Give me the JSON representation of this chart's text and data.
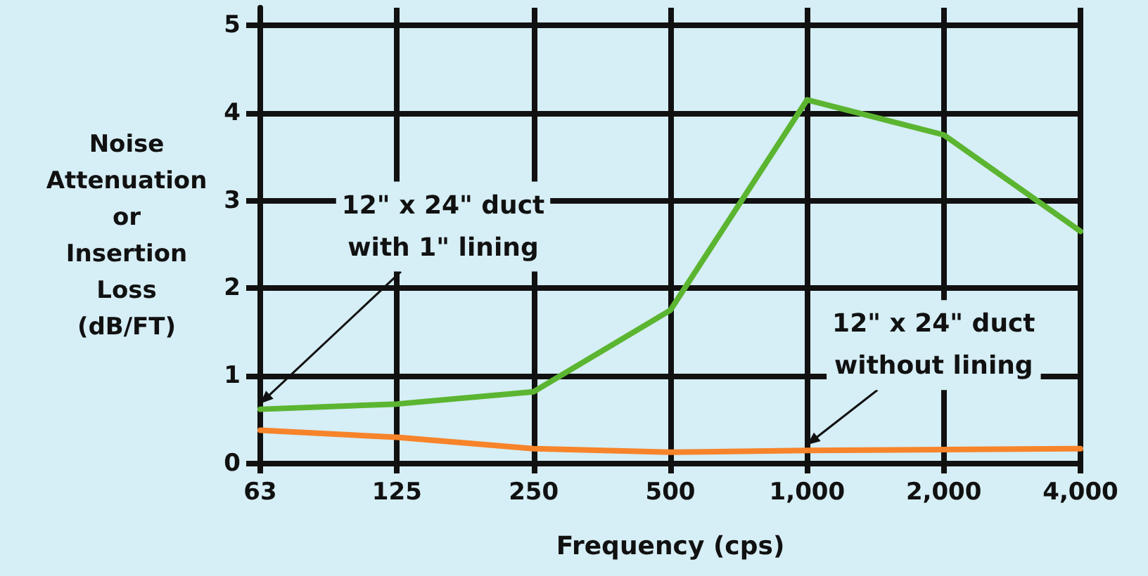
{
  "chart_data": {
    "type": "line",
    "xlabel": "Frequency (cps)",
    "ylabel": "Noise Attenuation or Insertion Loss (dB/FT)",
    "categories": [
      "63",
      "125",
      "250",
      "500",
      "1,000",
      "2,000",
      "4,000"
    ],
    "series": [
      {
        "color": "#5bb531",
        "values": [
          0.62,
          0.68,
          0.82,
          1.75,
          4.15,
          3.75,
          2.65
        ]
      },
      {
        "color": "#f7842a",
        "values": [
          0.38,
          0.3,
          0.17,
          0.13,
          0.15,
          0.16,
          0.17
        ]
      }
    ],
    "ylim": [
      0,
      5.2
    ],
    "yticks": [
      0,
      1,
      2,
      3,
      4,
      5
    ],
    "grid": true,
    "marker": "none",
    "line_style": "solid",
    "annotations": [
      {
        "text": "12\" x 24\" duct\nwith 1\" lining",
        "x": "63",
        "y": 0.62
      },
      {
        "text": "12\" x 24\" duct\nwithout lining",
        "x": "1,000",
        "y": 0.15
      }
    ]
  }
}
